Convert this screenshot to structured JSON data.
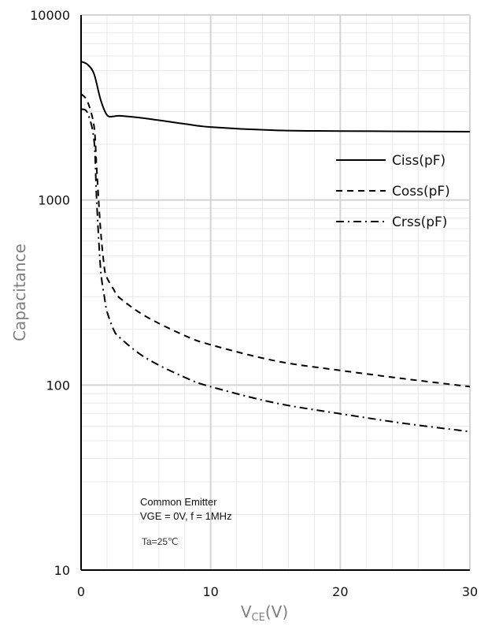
{
  "chart_data": {
    "type": "line",
    "xlabel": "V",
    "xlabel_sub": "CE",
    "xlabel_unit": "(V)",
    "ylabel": "Capacitance",
    "xlim": [
      0,
      30
    ],
    "ylim": [
      10,
      10000
    ],
    "y_scale": "log",
    "x_ticks": [
      0,
      10,
      20,
      30
    ],
    "x_tick_labels": [
      "0",
      "10",
      "20",
      "30"
    ],
    "y_ticks": [
      10,
      100,
      1000,
      10000
    ],
    "y_tick_labels": [
      "10",
      "100",
      "1000",
      "10000"
    ],
    "grid": true,
    "legend_position": "right",
    "series": [
      {
        "name": "Ciss(pF)",
        "style": "solid",
        "x": [
          0,
          0.5,
          1,
          1.5,
          2,
          2.5,
          3,
          5,
          8,
          10,
          15,
          20,
          25,
          30
        ],
        "y": [
          5600,
          5400,
          4800,
          3500,
          2880,
          2830,
          2850,
          2760,
          2580,
          2480,
          2380,
          2360,
          2350,
          2340
        ]
      },
      {
        "name": "Coss(pF)",
        "style": "dashed",
        "x": [
          0,
          0.5,
          1,
          1.2,
          1.5,
          1.8,
          2,
          2.5,
          3,
          5,
          8,
          10,
          15,
          20,
          25,
          30
        ],
        "y": [
          3750,
          3400,
          2500,
          1500,
          700,
          430,
          380,
          330,
          295,
          235,
          185,
          165,
          135,
          120,
          108,
          98
        ]
      },
      {
        "name": "Crss(pF)",
        "style": "dashdot",
        "x": [
          0,
          0.5,
          1,
          1.2,
          1.5,
          1.8,
          2,
          2.5,
          3,
          5,
          8,
          10,
          15,
          20,
          25,
          30
        ],
        "y": [
          3100,
          2950,
          2100,
          1000,
          430,
          300,
          250,
          200,
          180,
          140,
          110,
          98,
          80,
          70,
          62,
          56
        ]
      }
    ],
    "annotations": [
      "Common Emitter",
      "VGE = 0V, f = 1MHz",
      "Ta=25℃"
    ]
  }
}
